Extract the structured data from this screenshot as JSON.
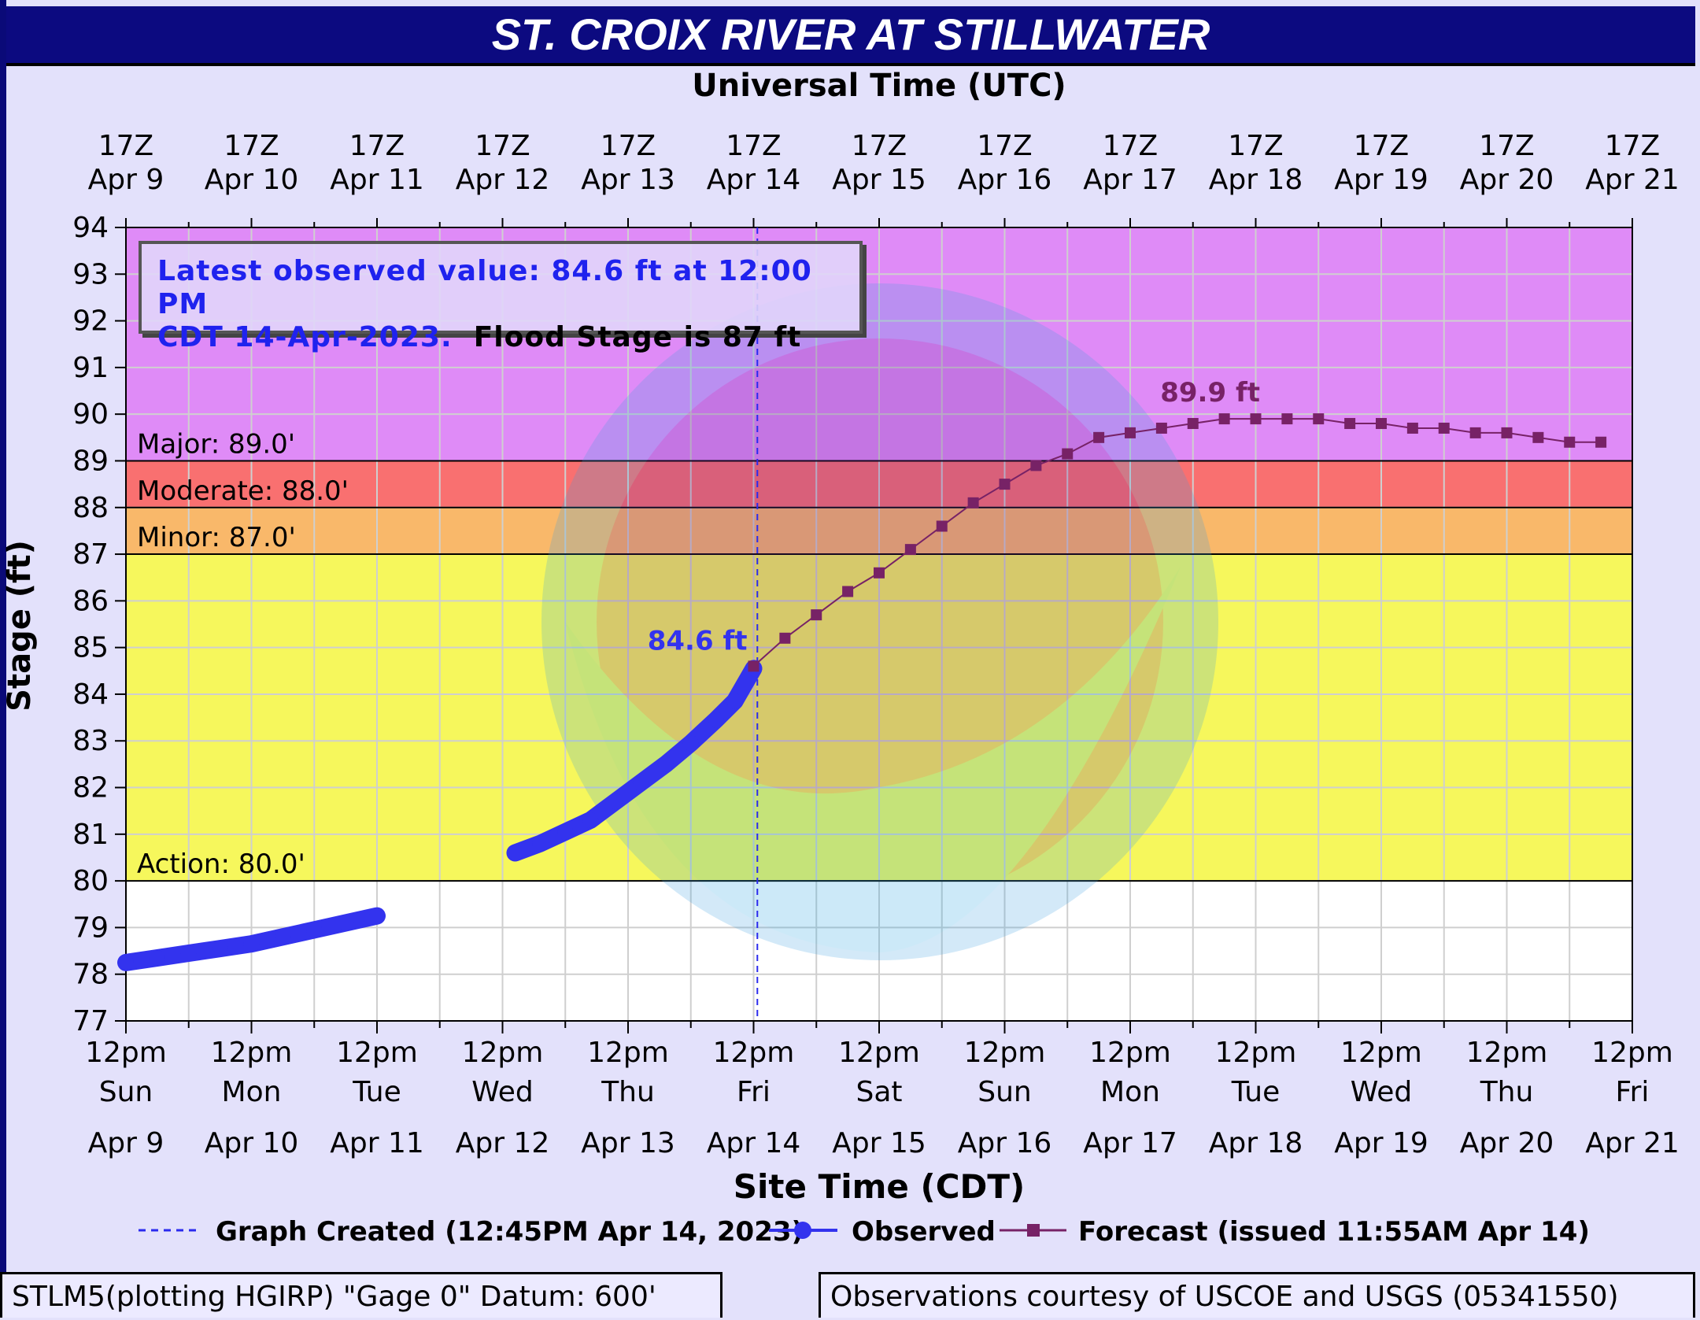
{
  "title": "ST. CROIX RIVER AT STILLWATER",
  "top_axis_title": "Universal Time (UTC)",
  "bottom_axis_title": "Site Time (CDT)",
  "y_axis_title": "Stage (ft)",
  "info": {
    "line1": "Latest observed value: 84.6 ft at 12:00 PM",
    "line2_blue": "CDT 14-Apr-2023.",
    "line2_black": "Flood Stage is 87 ft"
  },
  "legend": {
    "graph_created": "Graph Created (12:45PM Apr 14, 2023)",
    "observed": "Observed",
    "forecast": "Forecast (issued 11:55AM Apr 14)"
  },
  "footer": {
    "left": "STLM5(plotting HGIRP) \"Gage 0\" Datum: 600'",
    "right": "Observations courtesy of USCOE and USGS (05341550)"
  },
  "colors": {
    "major": "#df8bf7",
    "moderate": "#f97070",
    "minor": "#f9b86a",
    "action": "#f6f75c",
    "observed": "#3333ee",
    "forecast": "#772266",
    "title_bg": "#0c0a80"
  },
  "chart_data": {
    "type": "line",
    "title": "ST. CROIX RIVER AT STILLWATER",
    "ylabel": "Stage (ft)",
    "xlabel": "Site Time (CDT)",
    "ylim": [
      77,
      94
    ],
    "x_unit": "days since 12pm Sun Apr 9 (CDT)",
    "xlim": [
      0,
      12
    ],
    "x_ticks_bottom": [
      {
        "time": "12pm",
        "day": "Sun",
        "date": "Apr 9"
      },
      {
        "time": "12pm",
        "day": "Mon",
        "date": "Apr 10"
      },
      {
        "time": "12pm",
        "day": "Tue",
        "date": "Apr 11"
      },
      {
        "time": "12pm",
        "day": "Wed",
        "date": "Apr 12"
      },
      {
        "time": "12pm",
        "day": "Thu",
        "date": "Apr 13"
      },
      {
        "time": "12pm",
        "day": "Fri",
        "date": "Apr 14"
      },
      {
        "time": "12pm",
        "day": "Sat",
        "date": "Apr 15"
      },
      {
        "time": "12pm",
        "day": "Sun",
        "date": "Apr 16"
      },
      {
        "time": "12pm",
        "day": "Mon",
        "date": "Apr 17"
      },
      {
        "time": "12pm",
        "day": "Tue",
        "date": "Apr 18"
      },
      {
        "time": "12pm",
        "day": "Wed",
        "date": "Apr 19"
      },
      {
        "time": "12pm",
        "day": "Thu",
        "date": "Apr 20"
      },
      {
        "time": "12pm",
        "day": "Fri",
        "date": "Apr 21"
      }
    ],
    "x_ticks_top": [
      {
        "time": "17Z",
        "date": "Apr  9"
      },
      {
        "time": "17Z",
        "date": "Apr 10"
      },
      {
        "time": "17Z",
        "date": "Apr 11"
      },
      {
        "time": "17Z",
        "date": "Apr 12"
      },
      {
        "time": "17Z",
        "date": "Apr 13"
      },
      {
        "time": "17Z",
        "date": "Apr 14"
      },
      {
        "time": "17Z",
        "date": "Apr 15"
      },
      {
        "time": "17Z",
        "date": "Apr 16"
      },
      {
        "time": "17Z",
        "date": "Apr 17"
      },
      {
        "time": "17Z",
        "date": "Apr 18"
      },
      {
        "time": "17Z",
        "date": "Apr 19"
      },
      {
        "time": "17Z",
        "date": "Apr 20"
      },
      {
        "time": "17Z",
        "date": "Apr 21"
      }
    ],
    "y_ticks": [
      77,
      78,
      79,
      80,
      81,
      82,
      83,
      84,
      85,
      86,
      87,
      88,
      89,
      90,
      91,
      92,
      93,
      94
    ],
    "flood_categories": [
      {
        "name": "Major",
        "label": "Major: 89.0'",
        "from": 89,
        "to": 94
      },
      {
        "name": "Moderate",
        "label": "Moderate: 88.0'",
        "from": 88,
        "to": 89
      },
      {
        "name": "Minor",
        "label": "Minor: 87.0'",
        "from": 87,
        "to": 88
      },
      {
        "name": "Action",
        "label": "Action: 80.0'",
        "from": 80,
        "to": 87
      }
    ],
    "graph_created_x": 5.03,
    "series": [
      {
        "name": "Observed",
        "segments": [
          [
            [
              0,
              78.25
            ],
            [
              0.25,
              78.35
            ],
            [
              0.5,
              78.45
            ],
            [
              0.75,
              78.55
            ],
            [
              1.0,
              78.65
            ],
            [
              1.25,
              78.8
            ],
            [
              1.5,
              78.95
            ],
            [
              1.75,
              79.1
            ],
            [
              2.0,
              79.25
            ]
          ],
          [
            [
              3.1,
              80.6
            ],
            [
              3.3,
              80.8
            ],
            [
              3.5,
              81.05
            ],
            [
              3.7,
              81.3
            ],
            [
              3.9,
              81.7
            ],
            [
              4.1,
              82.1
            ],
            [
              4.3,
              82.5
            ],
            [
              4.5,
              82.95
            ],
            [
              4.7,
              83.45
            ],
            [
              4.85,
              83.85
            ],
            [
              5.0,
              84.55
            ]
          ]
        ],
        "annotation": "84.6 ft"
      },
      {
        "name": "Forecast",
        "points": [
          [
            5.0,
            84.6
          ],
          [
            5.25,
            85.2
          ],
          [
            5.5,
            85.7
          ],
          [
            5.75,
            86.2
          ],
          [
            6.0,
            86.6
          ],
          [
            6.25,
            87.1
          ],
          [
            6.5,
            87.6
          ],
          [
            6.75,
            88.1
          ],
          [
            7.0,
            88.5
          ],
          [
            7.25,
            88.9
          ],
          [
            7.5,
            89.15
          ],
          [
            7.75,
            89.5
          ],
          [
            8.0,
            89.6
          ],
          [
            8.25,
            89.7
          ],
          [
            8.5,
            89.8
          ],
          [
            8.75,
            89.9
          ],
          [
            9.0,
            89.9
          ],
          [
            9.25,
            89.9
          ],
          [
            9.5,
            89.9
          ],
          [
            9.75,
            89.8
          ],
          [
            10.0,
            89.8
          ],
          [
            10.25,
            89.7
          ],
          [
            10.5,
            89.7
          ],
          [
            10.75,
            89.6
          ],
          [
            11.0,
            89.6
          ],
          [
            11.25,
            89.5
          ],
          [
            11.5,
            89.4
          ],
          [
            11.75,
            89.4
          ]
        ],
        "annotation": "89.9 ft"
      }
    ],
    "grid": true
  }
}
